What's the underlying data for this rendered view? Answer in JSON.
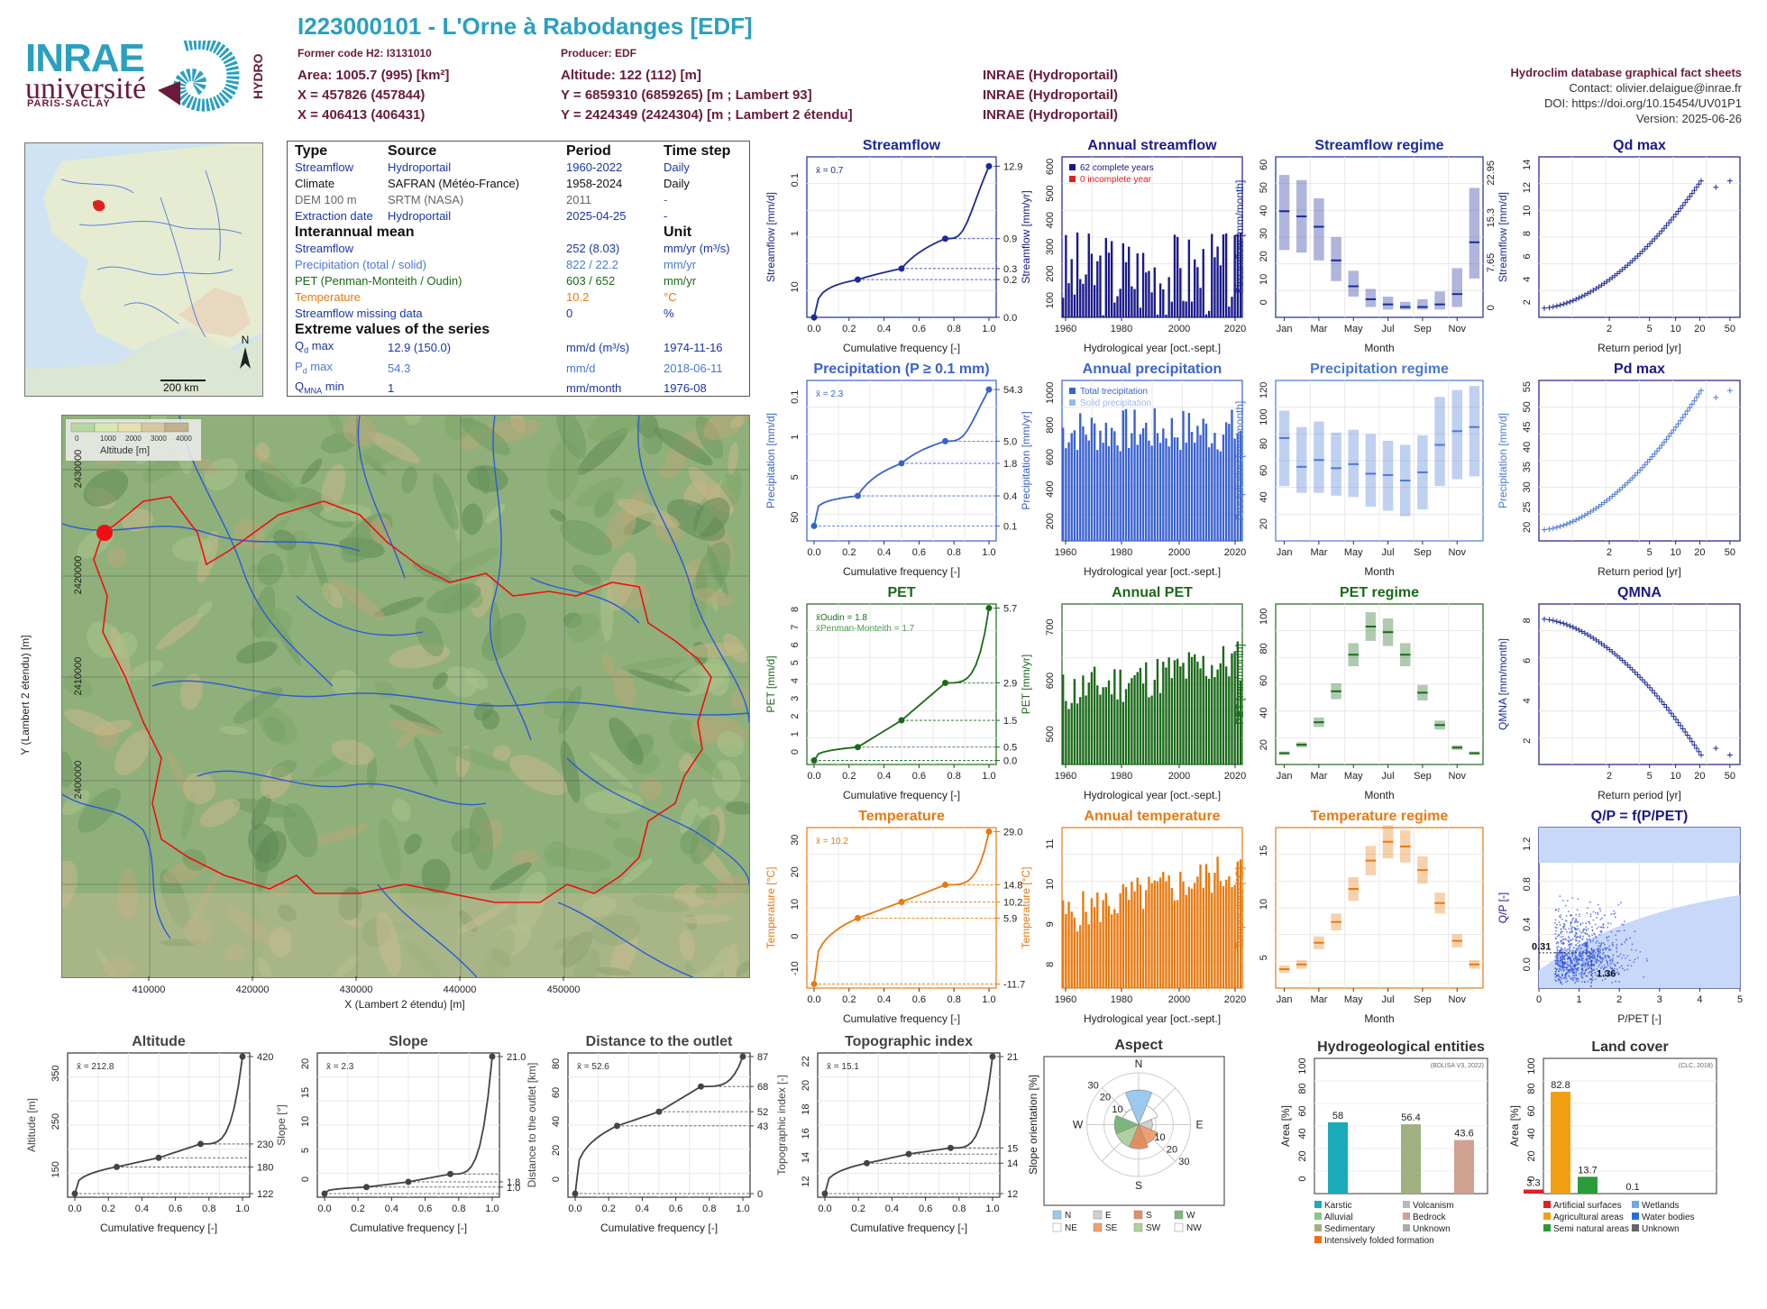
{
  "header": {
    "logo_inrae": "INRAE",
    "logo_univ": "université",
    "logo_ps": "PARIS-SACLAY",
    "logo_hydro": "HYDRO",
    "title": "I223000101 - L'Orne à Rabodanges [EDF]",
    "former_code": "Former code H2: I3131010",
    "producer": "Producer: EDF",
    "area": "Area: 1005.7 (995) [km²]",
    "altitude": "Altitude: 122 (112) [m]",
    "x93": "X = 457826 (457844)",
    "y93": "Y = 6859310 (6859265) [m ; Lambert 93]",
    "x2e": "X = 406413 (406431)",
    "y2e": "Y = 2424349 (2424304) [m ; Lambert 2 étendu]",
    "src1": "INRAE (Hydroportail)",
    "src2": "INRAE (Hydroportail)",
    "src3": "INRAE (Hydroportail)",
    "db_title": "Hydroclim database graphical fact sheets",
    "contact": "Contact: olivier.delaigue@inrae.fr",
    "doi": "DOI: https://doi.org/10.15454/UV01P1",
    "version": "Version: 2025-06-26"
  },
  "info": {
    "h_type": "Type",
    "h_source": "Source",
    "h_period": "Period",
    "h_step": "Time step",
    "rows": [
      {
        "type": "Streamflow",
        "source": "Hydroportail",
        "period": "1960-2022",
        "step": "Daily",
        "color": "#1a36a8"
      },
      {
        "type": "Climate",
        "source": "SAFRAN (Météo-France)",
        "period": "1958-2024",
        "step": "Daily",
        "color": "#111111"
      },
      {
        "type": "DEM 100 m",
        "source": "SRTM (NASA)",
        "period": "2011",
        "step": "-",
        "color": "#666666"
      },
      {
        "type": "Extraction date",
        "source": "Hydroportail",
        "period": "2025-04-25",
        "step": "-",
        "color": "#1a36a8"
      }
    ],
    "h_mean": "Interannual mean",
    "h_unit": "Unit",
    "means": [
      {
        "name": "Streamflow",
        "value": "252 (8.03)",
        "unit": "mm/yr (m³/s)",
        "color": "#1a36a8"
      },
      {
        "name": "Precipitation (total / solid)",
        "value": "822 / 22.2",
        "unit": "mm/yr",
        "color": "#4a78d8"
      },
      {
        "name": "PET (Penman-Monteith / Oudin)",
        "value": "603 / 652",
        "unit": "mm/yr",
        "color": "#1a6a1a"
      },
      {
        "name": "Temperature",
        "value": "10.2",
        "unit": "°C",
        "color": "#e87a10"
      },
      {
        "name": "Streamflow missing data",
        "value": "0",
        "unit": "%",
        "color": "#1a36a8"
      }
    ],
    "h_extreme": "Extreme values of the series",
    "extremes": [
      {
        "sym": "Q",
        "sub": "d",
        "suffix": " max",
        "value": "12.9 (150.0)",
        "unit": "mm/d (m³/s)",
        "date": "1974-11-16",
        "color": "#1a36a8"
      },
      {
        "sym": "P",
        "sub": "d",
        "suffix": " max",
        "value": "54.3",
        "unit": "mm/d",
        "date": "2018-06-11",
        "color": "#4a78d8"
      },
      {
        "sym": "Q",
        "sub": "MNA",
        "suffix": " min",
        "value": "1",
        "unit": "mm/month",
        "date": "1976-08",
        "color": "#1a36a8"
      }
    ]
  },
  "minimap": {
    "scale": "200 km",
    "north": "N"
  },
  "bigmap": {
    "legend_ticks": [
      "0",
      "1000",
      "2000",
      "3000",
      "4000"
    ],
    "legend_label": "Altitude [m]",
    "xticks": [
      "410000",
      "420000",
      "430000",
      "440000",
      "450000"
    ],
    "yticks": [
      "2430000",
      "2420000",
      "2410000",
      "2400000"
    ],
    "xlabel": "X (Lambert 2 étendu) [m]",
    "ylabel": "Y (Lambert 2 étendu) [m]"
  },
  "chart_data": [
    {
      "id": "streamflow_cdf",
      "type": "line",
      "title": "Streamflow",
      "xlabel": "Cumulative frequency [-]",
      "ylabel": "Streamflow [mm/d]",
      "mean_label": "x̄ = 0.7",
      "x": [
        0,
        0.25,
        0.5,
        0.75,
        1
      ],
      "y": [
        0,
        0.2,
        0.3,
        0.9,
        12.9
      ],
      "right_ticks": [
        "12.9",
        "0.9",
        "0.3",
        "0.2",
        "0.0"
      ],
      "left_ticks": [
        "10",
        "1",
        "0.1"
      ],
      "xticks": [
        "0.0",
        "0.2",
        "0.4",
        "0.6",
        "0.8",
        "1.0"
      ],
      "color": "#1a2a9a"
    },
    {
      "id": "annual_streamflow",
      "type": "bar",
      "title": "Annual streamflow",
      "xlabel": "Hydrological year [oct.-sept.]",
      "ylabel": "Streamflow [mm/yr]",
      "yticks": [
        "100",
        "200",
        "300",
        "400",
        "500",
        "600"
      ],
      "xticks": [
        "1960",
        "1980",
        "2000",
        "2020"
      ],
      "legend": [
        "62 complete years",
        "0 incomplete year"
      ],
      "color": "#1a1a8a",
      "seed": 3,
      "ymin": 100,
      "ymax": 650,
      "mean": 252,
      "amp": 150
    },
    {
      "id": "streamflow_regime",
      "type": "bar",
      "title": "Streamflow regime",
      "xlabel": "Month",
      "ylabel": "Streamflow [mm/month]",
      "yticks": [
        "0",
        "10",
        "20",
        "30",
        "40",
        "50",
        "60"
      ],
      "right_ticks": [
        "22.95",
        "15.3",
        "7.65",
        "0"
      ],
      "xticks": [
        "Jan",
        "Mar",
        "May",
        "Jul",
        "Sep",
        "Nov"
      ],
      "medians": [
        41,
        39,
        35,
        22,
        12,
        7,
        5,
        4,
        4,
        5,
        9,
        29
      ],
      "lo": [
        26,
        25,
        22,
        14,
        8,
        4,
        3,
        3,
        3,
        3,
        4,
        15
      ],
      "hi": [
        55,
        53,
        46,
        31,
        18,
        11,
        8,
        6,
        7,
        10,
        19,
        50
      ],
      "ymax": 62,
      "color": "#1a2a9a"
    },
    {
      "id": "qd_max",
      "type": "scatter",
      "title": "Qd max",
      "xlabel": "Return period [yr]",
      "ylabel": "Streamflow [mm/d]",
      "yticks": [
        "2",
        "4",
        "6",
        "8",
        "10",
        "12",
        "14"
      ],
      "xticks": [
        "2",
        "5",
        "10",
        "20",
        "50"
      ],
      "ymin": 1,
      "ymax": 15,
      "ystart": 1.8,
      "yend": 12.9,
      "color": "#1a2a9a"
    },
    {
      "id": "precip_cdf",
      "type": "line",
      "title": "Precipitation (P ≥ 0.1 mm)",
      "xlabel": "Cumulative frequency [-]",
      "ylabel": "Precipitation [mm/d]",
      "mean_label": "x̄ = 2.3",
      "x": [
        0,
        0.25,
        0.5,
        0.75,
        1
      ],
      "y": [
        0.1,
        0.4,
        1.8,
        5.0,
        54.3
      ],
      "right_ticks": [
        "54.3",
        "5.0",
        "1.8",
        "0.4",
        "0.1"
      ],
      "left_ticks": [
        "50",
        "5",
        "1",
        "0.1"
      ],
      "xticks": [
        "0.0",
        "0.2",
        "0.4",
        "0.6",
        "0.8",
        "1.0"
      ],
      "color": "#3a62d0"
    },
    {
      "id": "annual_precip",
      "type": "bar",
      "title": "Annual precipitation",
      "xlabel": "Hydrological year [oct.-sept.]",
      "ylabel": "Precipitation [mm/yr]",
      "yticks": [
        "200",
        "400",
        "600",
        "800",
        "1000"
      ],
      "xticks": [
        "1960",
        "1980",
        "2000",
        "2020"
      ],
      "legend": [
        "Total trecipitation",
        "Solid precipitation"
      ],
      "color": "#3a62d0",
      "seed": 7,
      "ymin": 100,
      "ymax": 1150,
      "mean": 822,
      "amp": 150
    },
    {
      "id": "precip_regime",
      "type": "bar",
      "title": "Precipitation regime",
      "xlabel": "Month",
      "ylabel": "Precipitation [mm/month]",
      "yticks": [
        "20",
        "40",
        "60",
        "80",
        "100",
        "120"
      ],
      "xticks": [
        "Jan",
        "Mar",
        "May",
        "Jul",
        "Sep",
        "Nov"
      ],
      "medians": [
        80,
        59,
        64,
        58,
        61,
        54,
        53,
        49,
        55,
        75,
        85,
        88
      ],
      "lo": [
        45,
        40,
        40,
        38,
        37,
        30,
        27,
        23,
        28,
        45,
        50,
        52
      ],
      "hi": [
        100,
        88,
        92,
        84,
        86,
        83,
        78,
        75,
        82,
        110,
        115,
        118
      ],
      "ymax": 122,
      "ymin": 5,
      "color": "#4a78d8"
    },
    {
      "id": "pd_max",
      "type": "scatter",
      "title": "Pd max",
      "xlabel": "Return period [yr]",
      "ylabel": "Precipitation [mm/d]",
      "yticks": [
        "20",
        "25",
        "30",
        "35",
        "40",
        "45",
        "50",
        "55"
      ],
      "xticks": [
        "2",
        "5",
        "10",
        "20",
        "50"
      ],
      "ymin": 14,
      "ymax": 57,
      "ystart": 17,
      "yend": 54.3,
      "color": "#4a78d8"
    },
    {
      "id": "pet_cdf",
      "type": "line",
      "title": "PET",
      "xlabel": "Cumulative frequency [-]",
      "ylabel": "PET [mm/d]",
      "mean_label": "x̄Oudin = 1.8",
      "mean_label2": "x̄Penman-Monteith = 1.7",
      "x": [
        0,
        0.25,
        0.5,
        0.75,
        1
      ],
      "y": [
        0,
        0.5,
        1.5,
        2.9,
        5.7
      ],
      "right_ticks": [
        "5.7",
        "2.9",
        "1.5",
        "0.5",
        "0.0"
      ],
      "left_ticks": [
        "0",
        "1",
        "2",
        "3",
        "4",
        "5",
        "6",
        "7",
        "8"
      ],
      "xticks": [
        "0.0",
        "0.2",
        "0.4",
        "0.6",
        "0.8",
        "1.0"
      ],
      "color": "#1a6a1a"
    },
    {
      "id": "annual_pet",
      "type": "bar",
      "title": "Annual PET",
      "xlabel": "Hydrological year [oct.-sept.]",
      "ylabel": "PET [mm/yr]",
      "yticks": [
        "500",
        "600",
        "700"
      ],
      "xticks": [
        "1960",
        "1980",
        "2000",
        "2020"
      ],
      "color": "#1a6a1a",
      "seed": 11,
      "ymin": 470,
      "ymax": 760,
      "mean": 630,
      "amp": 40
    },
    {
      "id": "pet_regime",
      "type": "bar",
      "title": "PET regime",
      "xlabel": "Month",
      "ylabel": "PET [mm/month]",
      "yticks": [
        "20",
        "40",
        "60",
        "80",
        "100"
      ],
      "xticks": [
        "Jan",
        "Mar",
        "May",
        "Jul",
        "Sep",
        "Nov"
      ],
      "medians": [
        12,
        18,
        34,
        56,
        82,
        102,
        98,
        82,
        55,
        32,
        16,
        12
      ],
      "ymax": 118,
      "ymin": 4,
      "color": "#1a6a1a"
    },
    {
      "id": "qmna",
      "type": "scatter",
      "title": "QMNA",
      "xlabel": "Return period [yr]",
      "ylabel": "QMNA [mm/month]",
      "yticks": [
        "2",
        "4",
        "6",
        "8"
      ],
      "xticks": [
        "2",
        "5",
        "10",
        "20",
        "50"
      ],
      "ymin": 0.5,
      "ymax": 9,
      "ystart": 8.2,
      "yend": 1.0,
      "color": "#1a2a9a"
    },
    {
      "id": "temp_cdf",
      "type": "line",
      "title": "Temperature",
      "xlabel": "Cumulative frequency [-]",
      "ylabel": "Temperature [°C]",
      "mean_label": "x̄ = 10.2",
      "x": [
        0,
        0.25,
        0.5,
        0.75,
        1
      ],
      "y": [
        -11.7,
        5.9,
        10.2,
        14.8,
        29.0
      ],
      "right_ticks": [
        "29.0",
        "14.8",
        "10.2",
        "5.9",
        "-11.7"
      ],
      "left_ticks": [
        "-10",
        "0",
        "10",
        "20",
        "30"
      ],
      "xticks": [
        "0.0",
        "0.2",
        "0.4",
        "0.6",
        "0.8",
        "1.0"
      ],
      "color": "#e87a10"
    },
    {
      "id": "annual_temp",
      "type": "bar",
      "title": "Annual temperature",
      "xlabel": "Hydrological year [oct.-sept.]",
      "ylabel": "Temperature [°C]",
      "yticks": [
        "8",
        "9",
        "10",
        "11"
      ],
      "xticks": [
        "1960",
        "1980",
        "2000",
        "2020"
      ],
      "color": "#e87a10",
      "seed": 5,
      "ymin": 7.8,
      "ymax": 11.8,
      "mean": 10.2,
      "amp": 0.5
    },
    {
      "id": "temp_regime",
      "type": "bar",
      "title": "Temperature regime",
      "xlabel": "Month",
      "ylabel": "Temperature [°C]",
      "yticks": [
        "5",
        "10",
        "15"
      ],
      "xticks": [
        "Jan",
        "Mar",
        "May",
        "Jul",
        "Sep",
        "Nov"
      ],
      "medians": [
        4,
        4.5,
        6.8,
        9,
        12.5,
        15.5,
        17.5,
        17,
        14.5,
        11,
        7,
        4.5
      ],
      "ymax": 19,
      "ymin": 2,
      "color": "#e87a10"
    },
    {
      "id": "qp_ppet",
      "type": "scatter",
      "title": "Q/P = f(P/PET)",
      "xlabel": "P/PET [-]",
      "ylabel": "Q/P [-]",
      "xticks": [
        "0",
        "1",
        "2",
        "3",
        "4",
        "5"
      ],
      "yticks": [
        "0.0",
        "0.4",
        "0.8",
        "1.2"
      ],
      "annot1": "0.31",
      "annot2": "1.36",
      "color": "#2a4ae0"
    },
    {
      "id": "altitude_cdf",
      "type": "line",
      "title": "Altitude",
      "xlabel": "Cumulative frequency [-]",
      "ylabel": "Altitude [m]",
      "mean_label": "x̄ = 212.8",
      "x": [
        0,
        0.25,
        0.5,
        0.75,
        1
      ],
      "y": [
        122,
        180,
        200,
        230,
        420
      ],
      "right_ticks": [
        "420",
        "230",
        "180",
        "122"
      ],
      "left_ticks": [
        "150",
        "250",
        "350"
      ],
      "xticks": [
        "0.0",
        "0.2",
        "0.4",
        "0.6",
        "0.8",
        "1.0"
      ],
      "color": "#444"
    },
    {
      "id": "slope_cdf",
      "type": "line",
      "title": "Slope",
      "xlabel": "Cumulative frequency [-]",
      "ylabel": "Slope [°]",
      "mean_label": "x̄ = 2.3",
      "x": [
        0,
        0.25,
        0.5,
        0.75,
        1
      ],
      "y": [
        0,
        1.0,
        1.8,
        3.0,
        21.0
      ],
      "right_ticks": [
        "21.0",
        "1.8",
        "1.0"
      ],
      "left_ticks": [
        "0",
        "5",
        "10",
        "15",
        "20"
      ],
      "xticks": [
        "0.0",
        "0.2",
        "0.4",
        "0.6",
        "0.8",
        "1.0"
      ],
      "color": "#444"
    },
    {
      "id": "distance_cdf",
      "type": "line",
      "title": "Distance to the outlet",
      "xlabel": "Cumulative frequency [-]",
      "ylabel": "Distance to the outlet [km]",
      "mean_label": "x̄ = 52.6",
      "x": [
        0,
        0.25,
        0.5,
        0.75,
        1
      ],
      "y": [
        0,
        43,
        52,
        68,
        87
      ],
      "right_ticks": [
        "87",
        "68",
        "52",
        "43",
        "0"
      ],
      "left_ticks": [
        "0",
        "20",
        "40",
        "60",
        "80"
      ],
      "xticks": [
        "0.0",
        "0.2",
        "0.4",
        "0.6",
        "0.8",
        "1.0"
      ],
      "color": "#444"
    },
    {
      "id": "topo_cdf",
      "type": "line",
      "title": "Topographic index",
      "xlabel": "Cumulative frequency [-]",
      "ylabel": "Topographic index [-]",
      "mean_label": "x̄ = 15.1",
      "x": [
        0,
        0.25,
        0.5,
        0.75,
        1
      ],
      "y": [
        12,
        14,
        14.6,
        15,
        21
      ],
      "right_ticks": [
        "21",
        "15",
        "14",
        "12"
      ],
      "left_ticks": [
        "12",
        "14",
        "16",
        "18",
        "20",
        "22"
      ],
      "xticks": [
        "0.0",
        "0.2",
        "0.4",
        "0.6",
        "0.8",
        "1.0"
      ],
      "color": "#444"
    },
    {
      "id": "aspect",
      "type": "pie",
      "title": "Aspect",
      "ylabel": "Slope orientation [%]",
      "labels": [
        "N",
        "NE",
        "E",
        "SE",
        "S",
        "SW",
        "W",
        "NW"
      ],
      "values": [
        20,
        12,
        8,
        12,
        14,
        14,
        14,
        10
      ],
      "rticks": [
        "10",
        "20",
        "30"
      ],
      "colors": [
        "#9ccaee",
        "#ffffff",
        "#d0d0d0",
        "#f0a070",
        "#e09060",
        "#b0d0a0",
        "#7ab87a",
        "#ffffff"
      ],
      "legend": [
        "N",
        "NE",
        "E",
        "SE",
        "S",
        "SW",
        "W",
        "NW"
      ]
    },
    {
      "id": "hydrogeo",
      "type": "bar",
      "title": "Hydrogeological entities",
      "ylabel": "Area [%]",
      "source": "(BDLISA V3, 2022)",
      "values": [
        58,
        56.4,
        43.6
      ],
      "labels": [
        "58",
        "56.4",
        "43.6"
      ],
      "colors": [
        "#1aaab8",
        "#a0b080",
        "#d0a090"
      ],
      "yticks": [
        "0",
        "20",
        "40",
        "60",
        "80",
        "100"
      ],
      "legend": [
        "Karstic",
        "Volcanism",
        "Alluvial",
        "Bedrock",
        "Sedimentary",
        "Unknown",
        "Intensively folded formation"
      ]
    },
    {
      "id": "landcover",
      "type": "bar",
      "title": "Land cover",
      "ylabel": "Area [%]",
      "source": "(CLC, 2018)",
      "values": [
        3.3,
        82.8,
        13.7,
        0.1
      ],
      "labels": [
        "3.3",
        "82.8",
        "13.7",
        "0.1"
      ],
      "colors": [
        "#e02020",
        "#f0a010",
        "#2a9a3a",
        "#2a6ae0"
      ],
      "yticks": [
        "0",
        "20",
        "40",
        "60",
        "80",
        "100"
      ],
      "legend": [
        "Artificial surfaces",
        "Wetlands",
        "Agricultural areas",
        "Water bodies",
        "Semi natural areas",
        "Unknown"
      ]
    }
  ]
}
